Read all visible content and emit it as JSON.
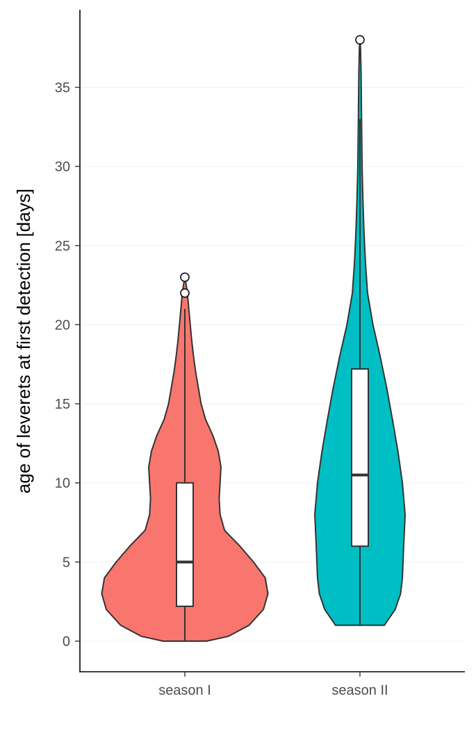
{
  "chart_data": {
    "type": "violin",
    "ylabel": "age of leverets at first detection [days]",
    "xlabel": "",
    "ylim": [
      -1.9,
      39.8
    ],
    "y_ticks": [
      0,
      5,
      10,
      15,
      20,
      25,
      30,
      35
    ],
    "grid": "horizontal-major",
    "categories": [
      "season I",
      "season II"
    ],
    "series": [
      {
        "category": "season I",
        "fill": "#F8766D",
        "range": [
          0,
          23
        ],
        "box": {
          "q1": 2.2,
          "median": 5,
          "q3": 10,
          "whisker_low": 0,
          "whisker_high": 21
        },
        "outliers": [
          22,
          23
        ],
        "density": [
          [
            0,
            1.2
          ],
          [
            0.3,
            2.4
          ],
          [
            1,
            3.55
          ],
          [
            2,
            4.35
          ],
          [
            3,
            4.6
          ],
          [
            4,
            4.45
          ],
          [
            5,
            3.8
          ],
          [
            6,
            3.05
          ],
          [
            7,
            2.2
          ],
          [
            8,
            1.95
          ],
          [
            9,
            1.9
          ],
          [
            10,
            1.95
          ],
          [
            11,
            2.0
          ],
          [
            12,
            1.85
          ],
          [
            13,
            1.55
          ],
          [
            14,
            1.15
          ],
          [
            15,
            0.9
          ],
          [
            16,
            0.75
          ],
          [
            17,
            0.6
          ],
          [
            18,
            0.48
          ],
          [
            19,
            0.38
          ],
          [
            20,
            0.3
          ],
          [
            21,
            0.22
          ],
          [
            22,
            0.14
          ],
          [
            22.6,
            0.06
          ],
          [
            23,
            0
          ]
        ]
      },
      {
        "category": "season II",
        "fill": "#00BFC4",
        "range": [
          1,
          38
        ],
        "box": {
          "q1": 6,
          "median": 10.5,
          "q3": 17.2,
          "whisker_low": 1,
          "whisker_high": 33
        },
        "outliers": [
          38
        ],
        "density": [
          [
            1,
            1.35
          ],
          [
            2,
            1.95
          ],
          [
            3,
            2.25
          ],
          [
            4,
            2.35
          ],
          [
            6,
            2.42
          ],
          [
            8,
            2.5
          ],
          [
            10,
            2.35
          ],
          [
            12,
            2.1
          ],
          [
            14,
            1.8
          ],
          [
            16,
            1.48
          ],
          [
            18,
            1.12
          ],
          [
            20,
            0.72
          ],
          [
            22,
            0.42
          ],
          [
            24,
            0.3
          ],
          [
            26,
            0.22
          ],
          [
            28,
            0.16
          ],
          [
            30,
            0.12
          ],
          [
            33,
            0.09
          ],
          [
            36,
            0.06
          ],
          [
            37.5,
            0.03
          ],
          [
            38,
            0
          ]
        ]
      }
    ]
  }
}
